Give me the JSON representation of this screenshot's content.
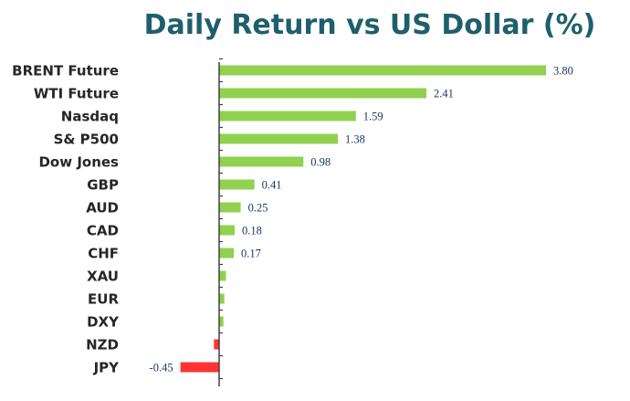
{
  "chart_data": {
    "type": "bar",
    "orientation": "horizontal",
    "title": "Daily Return vs US Dollar (%)",
    "xlabel": "",
    "ylabel": "",
    "categories": [
      "BRENT Future",
      "WTI Future",
      "Nasdaq",
      "S& P500",
      "Dow Jones",
      "GBP",
      "AUD",
      "CAD",
      "CHF",
      "XAU",
      "EUR",
      "DXY",
      "NZD",
      "JPY"
    ],
    "values": [
      3.8,
      2.41,
      1.59,
      1.38,
      0.98,
      0.41,
      0.25,
      0.18,
      0.17,
      0.08,
      0.06,
      0.05,
      -0.06,
      -0.45
    ],
    "value_labels": [
      "3.80",
      "2.41",
      "1.59",
      "1.38",
      "0.98",
      "0.41",
      "0.25",
      "0.18",
      "0.17",
      "",
      "",
      "",
      "",
      "-0.45"
    ],
    "xlim": [
      -0.45,
      3.8
    ],
    "grid": false,
    "legend": "none",
    "colors": {
      "positive": "#92d050",
      "negative": "#ff3333",
      "title": "#1f5f6b",
      "axis": "#404040",
      "category_text": "#262626",
      "value_text": "#1f3864"
    }
  }
}
